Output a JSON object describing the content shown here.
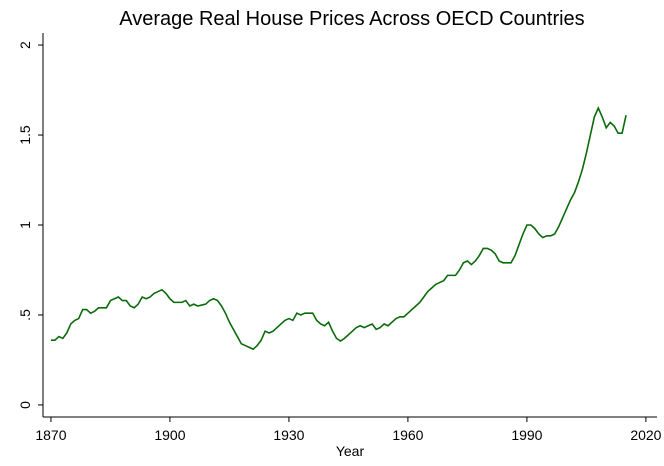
{
  "chart_data": {
    "type": "line",
    "title": "Average Real House Prices Across OECD Countries",
    "x_label": "Year",
    "x": [
      1870,
      1871,
      1872,
      1873,
      1874,
      1875,
      1876,
      1877,
      1878,
      1879,
      1880,
      1881,
      1882,
      1883,
      1884,
      1885,
      1886,
      1887,
      1888,
      1889,
      1890,
      1891,
      1892,
      1893,
      1894,
      1895,
      1896,
      1897,
      1898,
      1899,
      1900,
      1901,
      1902,
      1903,
      1904,
      1905,
      1906,
      1907,
      1908,
      1909,
      1910,
      1911,
      1912,
      1913,
      1914,
      1915,
      1916,
      1917,
      1918,
      1919,
      1920,
      1921,
      1922,
      1923,
      1924,
      1925,
      1926,
      1927,
      1928,
      1929,
      1930,
      1931,
      1932,
      1933,
      1934,
      1935,
      1936,
      1937,
      1938,
      1939,
      1940,
      1941,
      1942,
      1943,
      1944,
      1945,
      1946,
      1947,
      1948,
      1949,
      1950,
      1951,
      1952,
      1953,
      1954,
      1955,
      1956,
      1957,
      1958,
      1959,
      1960,
      1961,
      1962,
      1963,
      1964,
      1965,
      1966,
      1967,
      1968,
      1969,
      1970,
      1971,
      1972,
      1973,
      1974,
      1975,
      1976,
      1977,
      1978,
      1979,
      1980,
      1981,
      1982,
      1983,
      1984,
      1985,
      1986,
      1987,
      1988,
      1989,
      1990,
      1991,
      1992,
      1993,
      1994,
      1995,
      1996,
      1997,
      1998,
      1999,
      2000,
      2001,
      2002,
      2003,
      2004,
      2005,
      2006,
      2007,
      2008,
      2009,
      2010,
      2011,
      2012,
      2013,
      2014,
      2015
    ],
    "series": [
      {
        "color": "#0b6b0b",
        "values": [
          0.36,
          0.36,
          0.38,
          0.37,
          0.4,
          0.45,
          0.47,
          0.48,
          0.53,
          0.53,
          0.51,
          0.52,
          0.54,
          0.54,
          0.54,
          0.58,
          0.59,
          0.6,
          0.58,
          0.58,
          0.55,
          0.54,
          0.56,
          0.6,
          0.59,
          0.6,
          0.62,
          0.63,
          0.64,
          0.62,
          0.59,
          0.57,
          0.57,
          0.57,
          0.58,
          0.55,
          0.56,
          0.55,
          0.555,
          0.56,
          0.58,
          0.59,
          0.58,
          0.55,
          0.51,
          0.46,
          0.42,
          0.38,
          0.34,
          0.33,
          0.32,
          0.31,
          0.33,
          0.36,
          0.41,
          0.4,
          0.41,
          0.43,
          0.45,
          0.47,
          0.48,
          0.47,
          0.51,
          0.5,
          0.51,
          0.51,
          0.51,
          0.47,
          0.45,
          0.44,
          0.46,
          0.41,
          0.37,
          0.355,
          0.37,
          0.39,
          0.41,
          0.43,
          0.44,
          0.43,
          0.44,
          0.45,
          0.42,
          0.43,
          0.45,
          0.44,
          0.46,
          0.48,
          0.49,
          0.49,
          0.51,
          0.53,
          0.55,
          0.57,
          0.6,
          0.63,
          0.65,
          0.67,
          0.68,
          0.69,
          0.72,
          0.72,
          0.72,
          0.75,
          0.79,
          0.8,
          0.78,
          0.8,
          0.83,
          0.87,
          0.87,
          0.86,
          0.84,
          0.8,
          0.79,
          0.79,
          0.79,
          0.83,
          0.89,
          0.95,
          1.0,
          1.0,
          0.98,
          0.95,
          0.93,
          0.94,
          0.94,
          0.95,
          0.99,
          1.04,
          1.09,
          1.14,
          1.18,
          1.24,
          1.31,
          1.4,
          1.5,
          1.6,
          1.65,
          1.6,
          1.54,
          1.57,
          1.55,
          1.51,
          1.51,
          1.61
        ]
      }
    ],
    "xlim": [
      1868,
      2022.8
    ],
    "xticks": [
      1870,
      1900,
      1930,
      1960,
      1990,
      2020
    ],
    "ylim": [
      -0.067,
      2.067
    ],
    "yticks": [
      0,
      {
        "value": 0.5,
        "label": ".5"
      },
      1,
      1.5,
      2
    ],
    "grid": false
  }
}
